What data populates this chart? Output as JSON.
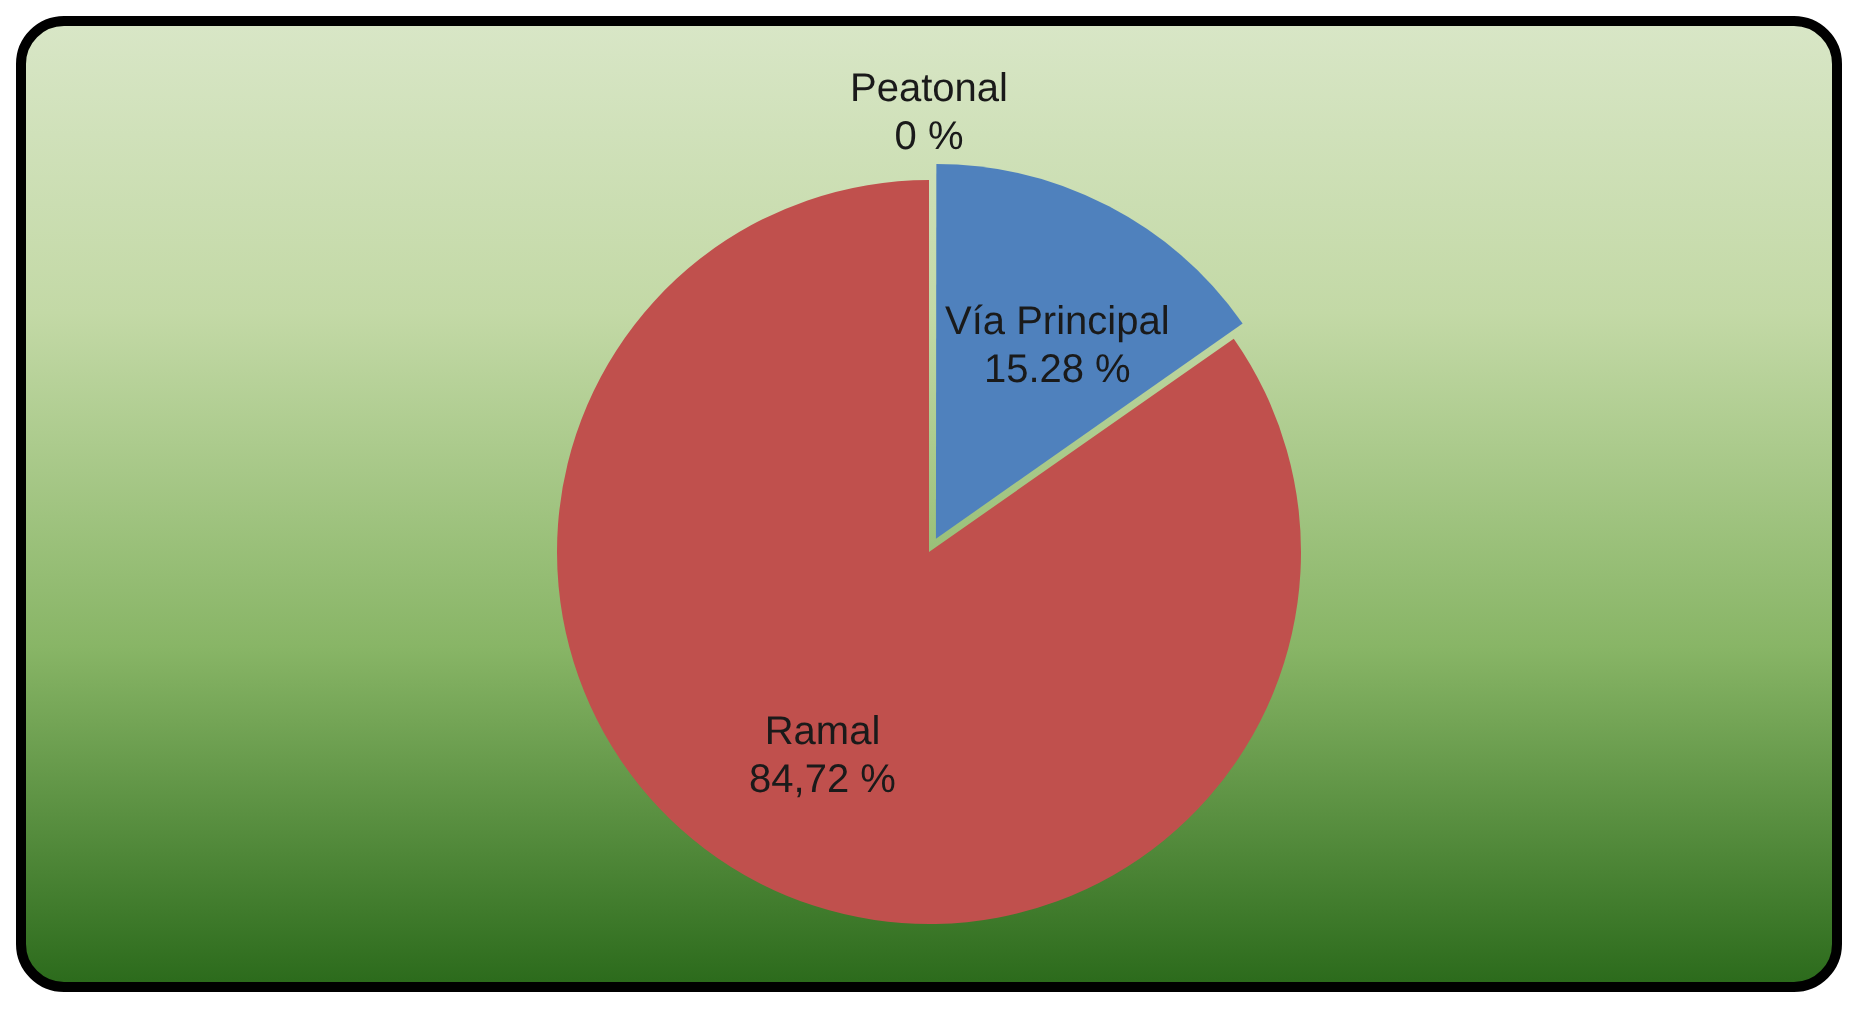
{
  "chart_data": {
    "type": "pie",
    "categories": [
      "Vía Principal",
      "Ramal",
      "Peatonal"
    ],
    "values": [
      15.28,
      84.72,
      0
    ],
    "colors": [
      "#4f81bd",
      "#c0504d",
      "#9bbb59"
    ],
    "value_labels": [
      "15.28 %",
      "84,72 %",
      "0 %"
    ]
  }
}
